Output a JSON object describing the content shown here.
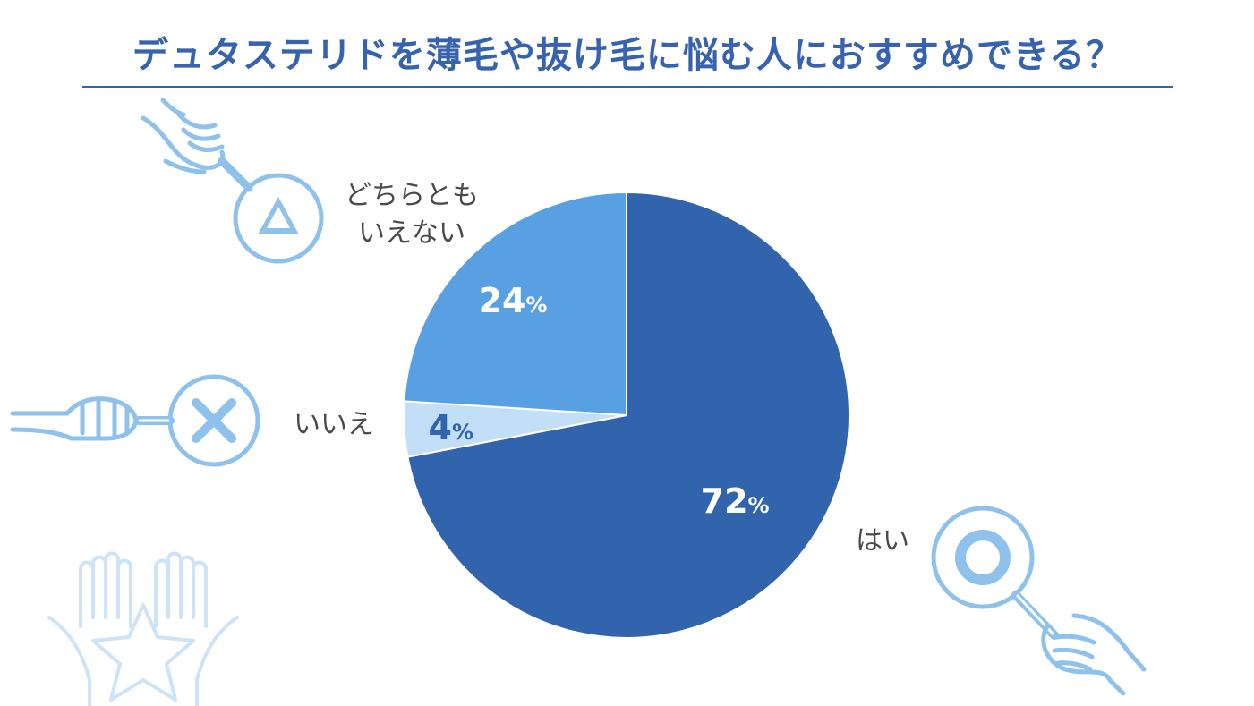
{
  "title": "デュタステリドを薄毛や抜け毛に悩む人におすすめできる？",
  "colors": {
    "title": "#3762ad",
    "slice_yes": "#3263ad",
    "slice_neutral": "#58a0e2",
    "slice_no": "#c3def7",
    "icon": "#8ec1ec"
  },
  "chart_data": {
    "type": "pie",
    "title": "デュタステリドを薄毛や抜け毛に悩む人におすすめできる？",
    "slices": [
      {
        "label": "はい",
        "value": 72,
        "value_label": "72",
        "unit": "%",
        "color": "#3263ad",
        "text_color": "#ffffff"
      },
      {
        "label": "いいえ",
        "value": 4,
        "value_label": "4",
        "unit": "%",
        "color": "#c3def7",
        "text_color": "#3263ad"
      },
      {
        "label_lines": [
          "どちらとも",
          "いえない"
        ],
        "value": 24,
        "value_label": "24",
        "unit": "%",
        "color": "#58a0e2",
        "text_color": "#ffffff"
      }
    ],
    "start": "12 o'clock",
    "direction": "clockwise",
    "legend": "none"
  },
  "icons": {
    "neutral": "triangle-sign-icon",
    "no": "cross-sign-icon",
    "yes": "circle-sign-icon",
    "decoration": "hands-star-icon"
  }
}
